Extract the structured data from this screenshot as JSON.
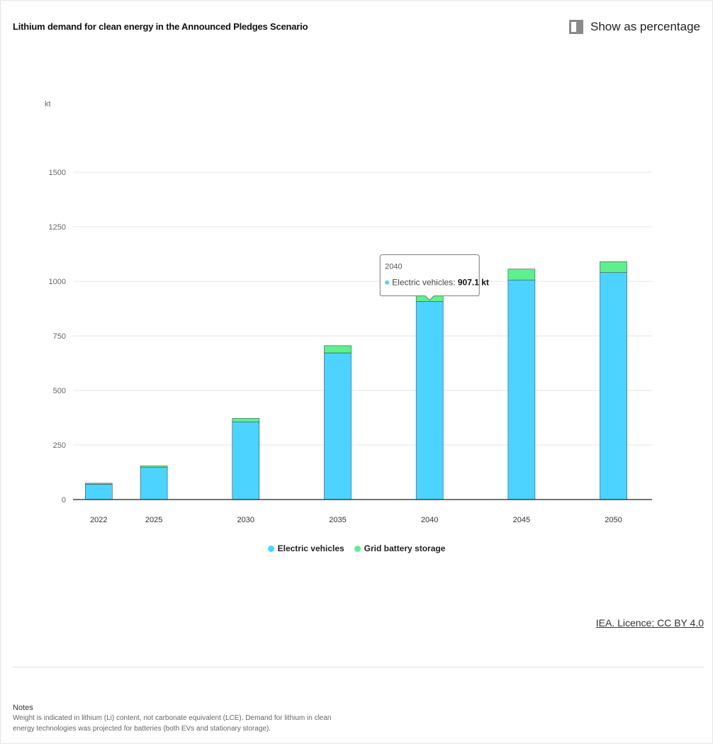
{
  "title": "Lithium demand for clean energy in the Announced Pledges Scenario",
  "toggle": {
    "label": "Show as percentage",
    "checked": false
  },
  "licence": "IEA. Licence: CC BY 4.0",
  "notes": {
    "title": "Notes",
    "text": "Weight is indicated in lithium (Li) content, not carbonate equivalent (LCE). Demand for lithium in clean energy technologies was projected for batteries (both EVs and stationary storage)."
  },
  "colors": {
    "ev": "#4dd3ff",
    "grid": "#5ef08f",
    "grid_line": "#e6e6e6",
    "axis": "#222222"
  },
  "tooltip": {
    "year": "2040",
    "series": "Electric vehicles",
    "value": "907.1 kt"
  },
  "chart_data": {
    "type": "bar",
    "stacked": true,
    "ylabel": "kt",
    "ylim": [
      0,
      1500
    ],
    "yticks": [
      0,
      250,
      500,
      750,
      1000,
      1250,
      1500
    ],
    "categories": [
      "2022",
      "2025",
      "2030",
      "2035",
      "2040",
      "2045",
      "2050"
    ],
    "x": [
      2022,
      2025,
      2030,
      2035,
      2040,
      2045,
      2050
    ],
    "series": [
      {
        "name": "Electric vehicles",
        "color": "#4dd3ff",
        "values": [
          70,
          147,
          355,
          672,
          907.1,
          1006,
          1040
        ]
      },
      {
        "name": "Grid battery storage",
        "color": "#5ef08f",
        "values": [
          5,
          7,
          17,
          33,
          48,
          50,
          50
        ]
      }
    ],
    "legend": "bottom-center",
    "grid": true
  }
}
